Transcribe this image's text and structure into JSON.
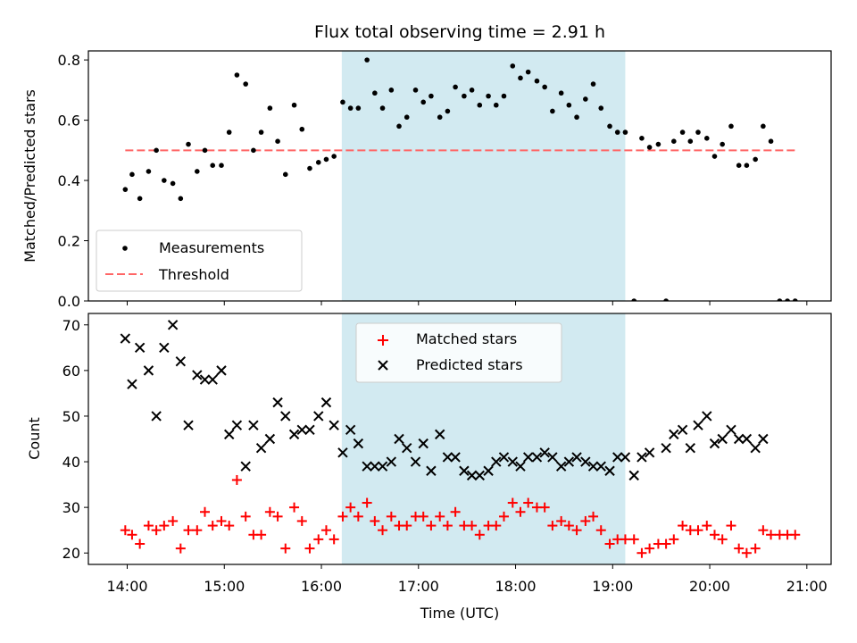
{
  "figure": {
    "title": "Flux total observing time = 2.91 h"
  },
  "colors": {
    "band": "#add8e6",
    "threshold": "#ff6666",
    "matched": "#ff0000",
    "predicted": "#000000",
    "measure": "#000000"
  },
  "chart_data": [
    {
      "type": "scatter",
      "title": "Flux total observing time = 2.91 h",
      "xlabel": "",
      "ylabel": "Matched/Predicted stars",
      "xlim": [
        13.6,
        21.25
      ],
      "ylim": [
        0,
        0.83
      ],
      "yticks": [
        0.0,
        0.2,
        0.4,
        0.6,
        0.8
      ],
      "ytick_labels": [
        "0.0",
        "0.2",
        "0.4",
        "0.6",
        "0.8"
      ],
      "shaded_interval": [
        16.21,
        19.13
      ],
      "legend": {
        "placement": "lower-left",
        "entries": [
          "Measurements",
          "Threshold"
        ]
      },
      "threshold": {
        "name": "Threshold",
        "value": 0.5,
        "x_range": [
          13.98,
          20.9
        ]
      },
      "series": [
        {
          "name": "Measurements",
          "x": [
            13.98,
            14.05,
            14.13,
            14.22,
            14.3,
            14.38,
            14.47,
            14.55,
            14.63,
            14.72,
            14.8,
            14.88,
            14.97,
            15.05,
            15.13,
            15.22,
            15.3,
            15.38,
            15.47,
            15.55,
            15.63,
            15.72,
            15.8,
            15.88,
            15.97,
            16.05,
            16.13,
            16.22,
            16.3,
            16.38,
            16.47,
            16.55,
            16.63,
            16.72,
            16.8,
            16.88,
            16.97,
            17.05,
            17.13,
            17.22,
            17.3,
            17.38,
            17.47,
            17.55,
            17.63,
            17.72,
            17.8,
            17.88,
            17.97,
            18.05,
            18.13,
            18.22,
            18.3,
            18.38,
            18.47,
            18.55,
            18.63,
            18.72,
            18.8,
            18.88,
            18.97,
            19.05,
            19.13,
            19.22,
            19.3,
            19.38,
            19.47,
            19.55,
            19.63,
            19.72,
            19.8,
            19.88,
            19.97,
            20.05,
            20.13,
            20.22,
            20.3,
            20.38,
            20.47,
            20.55,
            20.63,
            20.72,
            20.8,
            20.88
          ],
          "y": [
            0.37,
            0.42,
            0.34,
            0.43,
            0.5,
            0.4,
            0.39,
            0.34,
            0.52,
            0.43,
            0.5,
            0.45,
            0.45,
            0.56,
            0.75,
            0.72,
            0.5,
            0.56,
            0.64,
            0.53,
            0.42,
            0.65,
            0.57,
            0.44,
            0.46,
            0.47,
            0.48,
            0.66,
            0.64,
            0.64,
            0.8,
            0.69,
            0.64,
            0.7,
            0.58,
            0.61,
            0.7,
            0.66,
            0.68,
            0.61,
            0.63,
            0.71,
            0.68,
            0.7,
            0.65,
            0.68,
            0.65,
            0.68,
            0.78,
            0.74,
            0.76,
            0.73,
            0.71,
            0.63,
            0.69,
            0.65,
            0.61,
            0.67,
            0.72,
            0.64,
            0.58,
            0.56,
            0.56,
            0.0,
            0.54,
            0.51,
            0.52,
            0.0,
            0.53,
            0.56,
            0.53,
            0.56,
            0.54,
            0.48,
            0.52,
            0.58,
            0.45,
            0.45,
            0.47,
            0.58,
            0.53,
            0.0,
            0.0,
            0.0
          ]
        }
      ]
    },
    {
      "type": "scatter",
      "title": "",
      "xlabel": "Time (UTC)",
      "ylabel": "Count",
      "xlim": [
        13.6,
        21.25
      ],
      "ylim": [
        17.5,
        72.5
      ],
      "xticks": [
        14,
        15,
        16,
        17,
        18,
        19,
        20,
        21
      ],
      "xtick_labels": [
        "14:00",
        "15:00",
        "16:00",
        "17:00",
        "18:00",
        "19:00",
        "20:00",
        "21:00"
      ],
      "yticks": [
        20,
        30,
        40,
        50,
        60,
        70
      ],
      "ytick_labels": [
        "20",
        "30",
        "40",
        "50",
        "60",
        "70"
      ],
      "shaded_interval": [
        16.21,
        19.13
      ],
      "legend": {
        "placement": "upper-center",
        "entries": [
          "Matched stars",
          "Predicted stars"
        ]
      },
      "series": [
        {
          "name": "Matched stars",
          "x": [
            13.98,
            14.05,
            14.13,
            14.22,
            14.3,
            14.38,
            14.47,
            14.55,
            14.63,
            14.72,
            14.8,
            14.88,
            14.97,
            15.05,
            15.13,
            15.22,
            15.3,
            15.38,
            15.47,
            15.55,
            15.63,
            15.72,
            15.8,
            15.88,
            15.97,
            16.05,
            16.13,
            16.22,
            16.3,
            16.38,
            16.47,
            16.55,
            16.63,
            16.72,
            16.8,
            16.88,
            16.97,
            17.05,
            17.13,
            17.22,
            17.3,
            17.38,
            17.47,
            17.55,
            17.63,
            17.72,
            17.8,
            17.88,
            17.97,
            18.05,
            18.13,
            18.22,
            18.3,
            18.38,
            18.47,
            18.55,
            18.63,
            18.72,
            18.8,
            18.88,
            18.97,
            19.05,
            19.13,
            19.22,
            19.3,
            19.38,
            19.47,
            19.55,
            19.63,
            19.72,
            19.8,
            19.88,
            19.97,
            20.05,
            20.13,
            20.22,
            20.3,
            20.38,
            20.47,
            20.55,
            20.63,
            20.72,
            20.8,
            20.88
          ],
          "y": [
            25,
            24,
            22,
            26,
            25,
            26,
            27,
            21,
            25,
            25,
            29,
            26,
            27,
            26,
            36,
            28,
            24,
            24,
            29,
            28,
            21,
            30,
            27,
            21,
            23,
            25,
            23,
            28,
            30,
            28,
            31,
            27,
            25,
            28,
            26,
            26,
            28,
            28,
            26,
            28,
            26,
            29,
            26,
            26,
            24,
            26,
            26,
            28,
            31,
            29,
            31,
            30,
            30,
            26,
            27,
            26,
            25,
            27,
            28,
            25,
            22,
            23,
            23,
            23,
            20,
            21,
            22,
            22,
            23,
            26,
            25,
            25,
            26,
            24,
            23,
            26,
            21,
            20,
            21,
            25,
            24,
            24,
            24,
            24
          ]
        },
        {
          "name": "Predicted stars",
          "x": [
            13.98,
            14.05,
            14.13,
            14.22,
            14.3,
            14.38,
            14.47,
            14.55,
            14.63,
            14.72,
            14.8,
            14.88,
            14.97,
            15.05,
            15.13,
            15.22,
            15.3,
            15.38,
            15.47,
            15.55,
            15.63,
            15.72,
            15.8,
            15.88,
            15.97,
            16.05,
            16.13,
            16.22,
            16.3,
            16.38,
            16.47,
            16.55,
            16.63,
            16.72,
            16.8,
            16.88,
            16.97,
            17.05,
            17.13,
            17.22,
            17.3,
            17.38,
            17.47,
            17.55,
            17.63,
            17.72,
            17.8,
            17.88,
            17.97,
            18.05,
            18.13,
            18.22,
            18.3,
            18.38,
            18.47,
            18.55,
            18.63,
            18.72,
            18.8,
            18.88,
            18.97,
            19.05,
            19.13,
            19.22,
            19.3,
            19.38,
            19.47,
            19.55,
            19.63,
            19.72,
            19.8,
            19.88,
            19.97,
            20.05,
            20.13,
            20.22,
            20.3,
            20.38,
            20.47,
            20.55,
            20.63
          ],
          "y": [
            67,
            57,
            65,
            60,
            50,
            65,
            70,
            62,
            48,
            59,
            58,
            58,
            60,
            46,
            48,
            39,
            48,
            43,
            45,
            53,
            50,
            46,
            47,
            47,
            50,
            53,
            48,
            42,
            47,
            44,
            39,
            39,
            39,
            40,
            45,
            43,
            40,
            44,
            38,
            46,
            41,
            41,
            38,
            37,
            37,
            38,
            40,
            41,
            40,
            39,
            41,
            41,
            42,
            41,
            39,
            40,
            41,
            40,
            39,
            39,
            38,
            41,
            41,
            37,
            41,
            42,
            null,
            43,
            46,
            47,
            43,
            48,
            50,
            44,
            45,
            47,
            45,
            45,
            43,
            45,
            null
          ]
        }
      ]
    }
  ]
}
